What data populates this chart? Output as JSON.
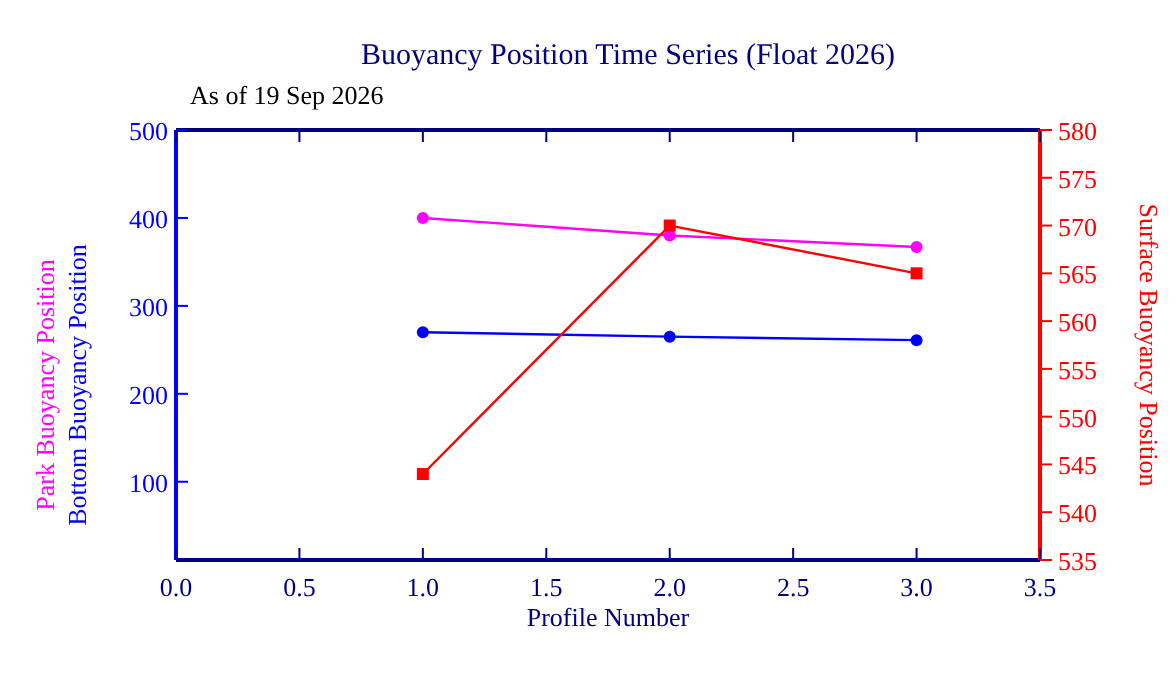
{
  "chart_data": {
    "type": "line",
    "title": "Buoyancy Position Time Series (Float 2026)",
    "subtitle": "As of 19 Sep 2026",
    "xlabel": "Profile Number",
    "y2label": "Surface Buoyancy Position",
    "x": [
      1,
      2,
      3
    ],
    "series": [
      {
        "name": "Park Buoyancy Position",
        "color": "#ff00ff",
        "values": [
          400,
          380,
          367
        ],
        "marker": "circle"
      },
      {
        "name": "Bottom Buoyancy Position",
        "color": "#0000ff",
        "values": [
          270,
          265,
          261
        ],
        "marker": "circle"
      },
      {
        "color": "#ff0000",
        "values": [
          544,
          570,
          565
        ],
        "axis": "y2",
        "marker": "square"
      }
    ],
    "xlim": [
      0,
      3.5
    ],
    "xticks": [
      {
        "value": 0,
        "label": "0.0"
      },
      {
        "value": 0.5,
        "label": "0.5"
      },
      {
        "value": 1,
        "label": "1.0"
      },
      {
        "value": 1.5,
        "label": "1.5"
      },
      {
        "value": 2,
        "label": "2.0"
      },
      {
        "value": 2.5,
        "label": "2.5"
      },
      {
        "value": 3,
        "label": "3.0"
      },
      {
        "value": 3.5,
        "label": "3.5"
      }
    ],
    "ylim": [
      11,
      500
    ],
    "yticks": [
      100,
      200,
      300,
      400,
      500
    ],
    "y2lim": [
      535,
      580
    ],
    "y2ticks": [
      535,
      540,
      545,
      550,
      555,
      560,
      565,
      570,
      575,
      580
    ]
  }
}
